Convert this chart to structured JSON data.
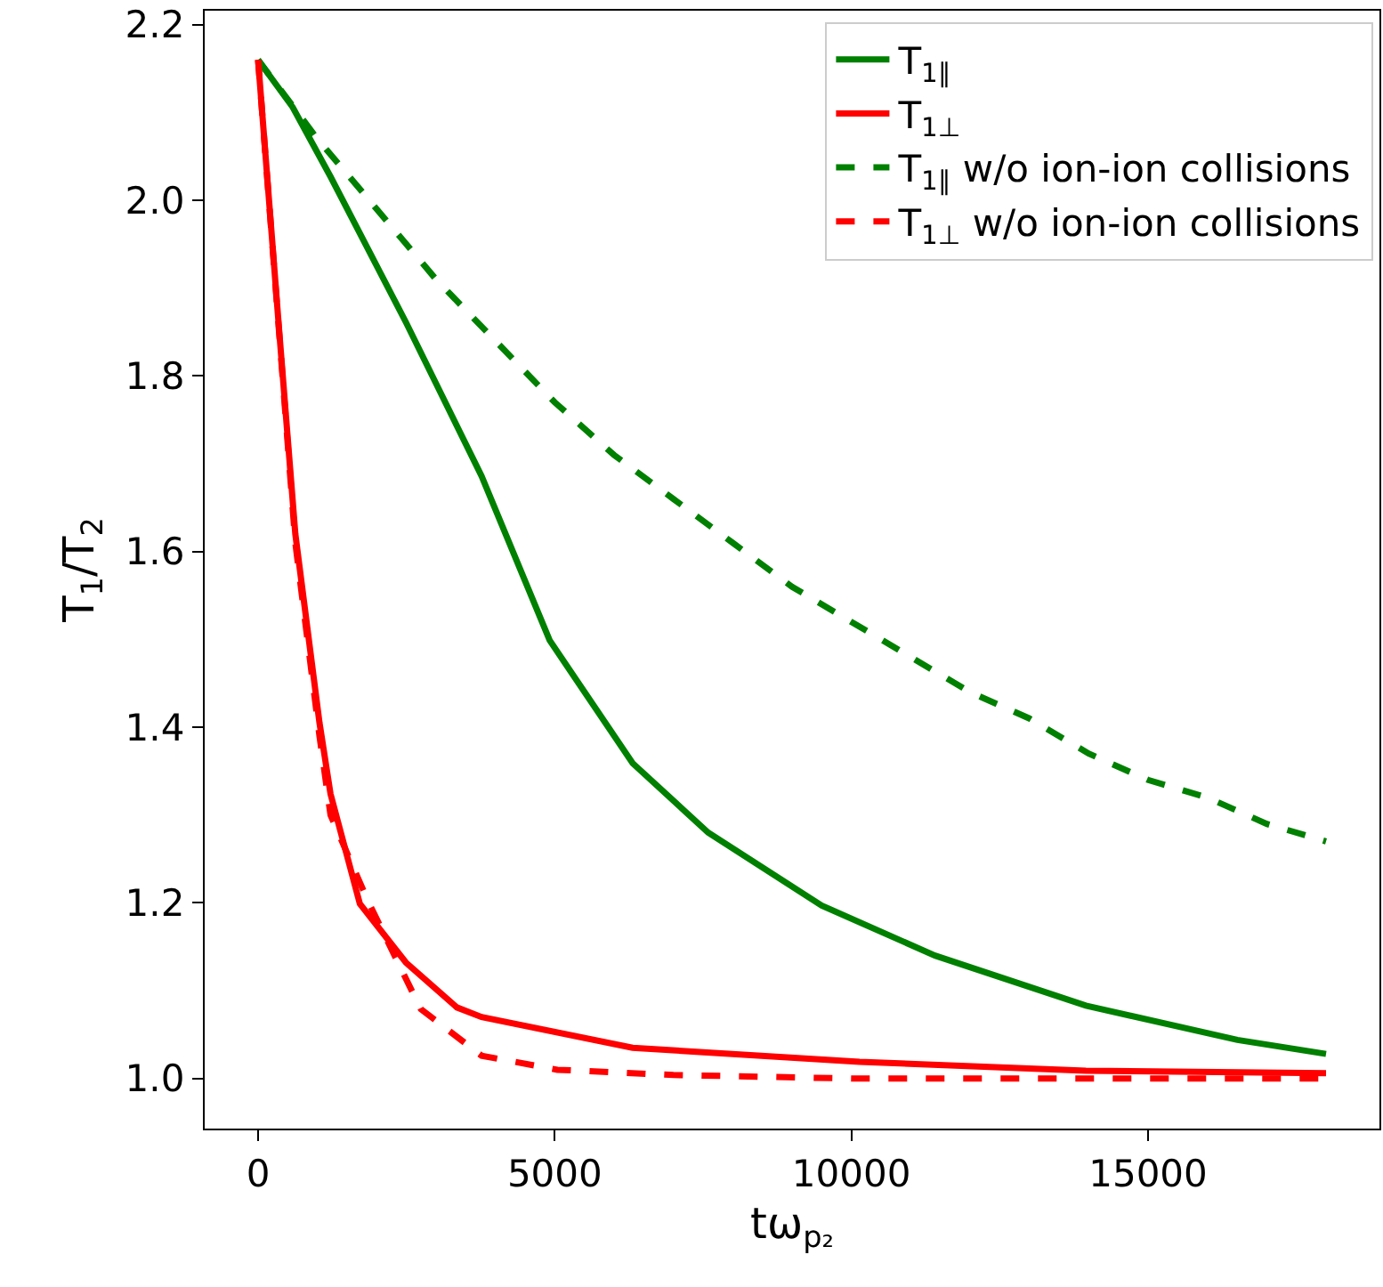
{
  "chart_data": {
    "type": "line",
    "xlabel": "tω$_{p₂}$",
    "ylabel": "T$_{1}$/T$_{2}$",
    "xlim": [
      -900,
      18900
    ],
    "ylim": [
      0.943,
      2.216
    ],
    "xticks": [
      0,
      5000,
      10000,
      15000
    ],
    "yticks": [
      {
        "value": 1,
        "label": "1.0"
      },
      {
        "value": 1.2,
        "label": "1.2"
      },
      {
        "value": 1.4,
        "label": "1.4"
      },
      {
        "value": 1.6,
        "label": "1.6"
      },
      {
        "value": 1.8,
        "label": "1.8"
      },
      {
        "value": 2,
        "label": "2.0"
      },
      {
        "value": 2.2,
        "label": "2.2"
      }
    ],
    "grid": false,
    "legend": "top right",
    "marker": "none",
    "series": [
      {
        "name": "T$_{1∥}$",
        "color": "#008000",
        "line_style": "solid",
        "x": [
          0,
          584,
          1221,
          2493,
          3767,
          4914,
          6313,
          7587,
          9499,
          11410,
          13953,
          16506,
          18000
        ],
        "values": [
          2.16,
          2.106,
          2.027,
          1.861,
          1.686,
          1.499,
          1.359,
          1.28,
          1.197,
          1.14,
          1.083,
          1.044,
          1.028
        ]
      },
      {
        "name": "T$_{1⊥}$",
        "color": "#ff0000",
        "line_style": "solid",
        "x": [
          0,
          354,
          628,
          1035,
          1221,
          1715,
          2493,
          3350,
          3767,
          6313,
          10136,
          13953,
          18000
        ],
        "values": [
          2.16,
          1.853,
          1.62,
          1.405,
          1.324,
          1.199,
          1.132,
          1.081,
          1.07,
          1.035,
          1.019,
          1.009,
          1.006
        ]
      },
      {
        "name": "T$_{1∥}$ w/o ion-ion collisions",
        "color": "#008000",
        "line_style": "dashed",
        "x": [
          0,
          1000,
          2000,
          3000,
          4000,
          5000,
          6000,
          7000,
          8000,
          9000,
          10000,
          11000,
          12000,
          13000,
          14000,
          15000,
          16000,
          17000,
          18000
        ],
        "values": [
          2.16,
          2.07,
          1.99,
          1.91,
          1.84,
          1.77,
          1.71,
          1.66,
          1.61,
          1.56,
          1.52,
          1.48,
          1.44,
          1.41,
          1.37,
          1.34,
          1.32,
          1.29,
          1.27
        ]
      },
      {
        "name": "T$_{1⊥}$ w/o ion-ion collisions",
        "color": "#ff0000",
        "line_style": "dashed",
        "x": [
          0,
          354,
          628,
          1035,
          1221,
          1859,
          2743,
          3767,
          5044,
          7000,
          10000,
          18000
        ],
        "values": [
          2.16,
          1.85,
          1.61,
          1.39,
          1.3,
          1.201,
          1.079,
          1.026,
          1.01,
          1.004,
          1.0,
          1.0
        ]
      }
    ]
  }
}
